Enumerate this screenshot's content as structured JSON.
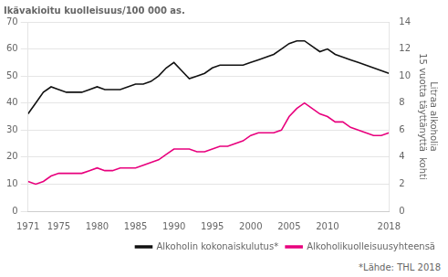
{
  "chart_data": {
    "type": "line",
    "title": "Ikävakioitu kuolleisuus/100 000 as.",
    "y2label": "Litraa alkoholia\n15 vuotta täyttänyttä  kohti",
    "annotations": [
      "*Lähde: THL 2018"
    ],
    "x": [
      1971,
      1972,
      1973,
      1974,
      1975,
      1976,
      1977,
      1978,
      1979,
      1980,
      1981,
      1982,
      1983,
      1984,
      1985,
      1986,
      1987,
      1988,
      1989,
      1990,
      1991,
      1992,
      1993,
      1994,
      1995,
      1996,
      1997,
      1998,
      1999,
      2000,
      2001,
      2002,
      2003,
      2004,
      2005,
      2006,
      2007,
      2008,
      2009,
      2010,
      2011,
      2012,
      2013,
      2014,
      2015,
      2016,
      2017,
      2018
    ],
    "xlim": [
      1971,
      2018
    ],
    "xticks": [
      1971,
      1975,
      1980,
      1985,
      1990,
      1995,
      2000,
      2005,
      2010,
      2018
    ],
    "ylim": [
      0,
      70
    ],
    "yticks": [
      0,
      10,
      20,
      30,
      40,
      50,
      60,
      70
    ],
    "y2lim": [
      0,
      14
    ],
    "y2ticks": [
      0,
      2,
      4,
      6,
      8,
      10,
      12,
      14
    ],
    "grid": true,
    "legend": "lower right",
    "series": [
      {
        "name": "Alkoholin kokonaiskulutus*",
        "color": "#111111",
        "values": [
          36,
          40,
          44,
          46,
          45,
          44,
          44,
          44,
          45,
          46,
          45,
          45,
          45,
          46,
          47,
          47,
          48,
          50,
          53,
          55,
          52,
          49,
          50,
          51,
          53,
          54,
          54,
          54,
          54,
          55,
          56,
          57,
          58,
          60,
          62,
          63,
          63,
          61,
          59,
          60,
          58,
          57,
          56,
          55,
          54,
          53,
          52,
          51
        ]
      },
      {
        "name": "Alkoholikuolleisuusyhteensä",
        "color": "#e8007d",
        "values": [
          11,
          10,
          11,
          13,
          14,
          14,
          14,
          14,
          15,
          16,
          15,
          15,
          16,
          16,
          16,
          17,
          18,
          19,
          21,
          23,
          23,
          23,
          22,
          22,
          23,
          24,
          24,
          25,
          26,
          28,
          29,
          29,
          29,
          30,
          35,
          38,
          40,
          38,
          36,
          35,
          33,
          33,
          31,
          30,
          29,
          28,
          28,
          29
        ]
      }
    ]
  }
}
